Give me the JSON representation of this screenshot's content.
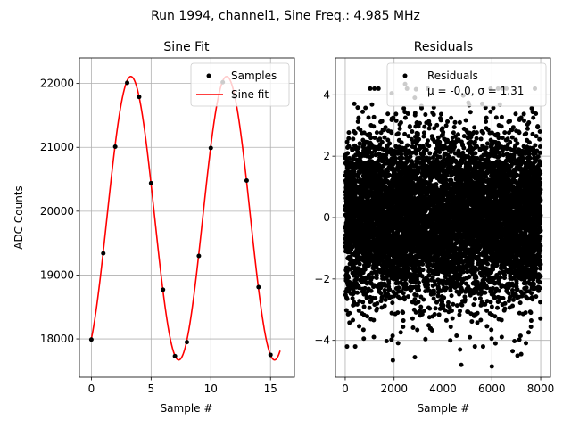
{
  "figure": {
    "suptitle": "Run 1994, channel1, Sine Freq.: 4.985 MHz"
  },
  "chart_data": [
    {
      "type": "scatter",
      "title": "Sine Fit",
      "xlabel": "Sample #",
      "ylabel": "ADC Counts",
      "xlim": [
        -1,
        17
      ],
      "ylim": [
        17400,
        22400
      ],
      "xticks": [
        0,
        5,
        10,
        15
      ],
      "yticks": [
        18000,
        19000,
        20000,
        21000,
        22000
      ],
      "grid": true,
      "legend_position": "top-right",
      "series": [
        {
          "name": "Samples",
          "kind": "scatter",
          "color": "#000000",
          "x": [
            0,
            1,
            2,
            3,
            4,
            5,
            6,
            7,
            8,
            9,
            10,
            11,
            12,
            13,
            14,
            15
          ],
          "y": [
            17990,
            19340,
            21010,
            22010,
            21790,
            20440,
            18770,
            17730,
            17950,
            19300,
            20990,
            22020,
            21790,
            20480,
            18810,
            17750
          ]
        },
        {
          "name": "Sine fit",
          "kind": "line",
          "color": "#ff0000",
          "fit": {
            "mean": 19890,
            "amplitude": 2220,
            "period": 8.02,
            "phase_shift": 1.3,
            "x_range": [
              0,
              15.8
            ]
          }
        }
      ]
    },
    {
      "type": "scatter",
      "title": "Residuals",
      "xlabel": "Sample #",
      "ylabel": "",
      "xlim": [
        -400,
        8400
      ],
      "ylim": [
        -5.2,
        5.2
      ],
      "xticks": [
        0,
        2000,
        4000,
        6000,
        8000
      ],
      "yticks": [
        -4,
        -2,
        0,
        2,
        4
      ],
      "grid": true,
      "legend_position": "top-right",
      "series": [
        {
          "name": "Residuals",
          "kind": "scatter",
          "color": "#000000",
          "n_points": 8000,
          "x_range": [
            0,
            7999
          ],
          "mean": -0.0,
          "std": 1.31,
          "outliers": [
            {
              "x": 2450,
              "y": 4.35
            },
            {
              "x": 5950,
              "y": 4.2
            },
            {
              "x": 1900,
              "y": 4.05
            },
            {
              "x": 1950,
              "y": -4.65
            },
            {
              "x": 2850,
              "y": -4.55
            },
            {
              "x": 4700,
              "y": -4.3
            },
            {
              "x": 4750,
              "y": -4.8
            },
            {
              "x": 6000,
              "y": -4.85
            },
            {
              "x": 6850,
              "y": -4.35
            },
            {
              "x": 7050,
              "y": -4.5
            },
            {
              "x": 7200,
              "y": -4.45
            },
            {
              "x": 4300,
              "y": -4.0
            },
            {
              "x": 5100,
              "y": -3.9
            },
            {
              "x": 6150,
              "y": -4.1
            }
          ]
        }
      ],
      "legend_stats": "μ = -0.0, σ = 1.31"
    }
  ]
}
